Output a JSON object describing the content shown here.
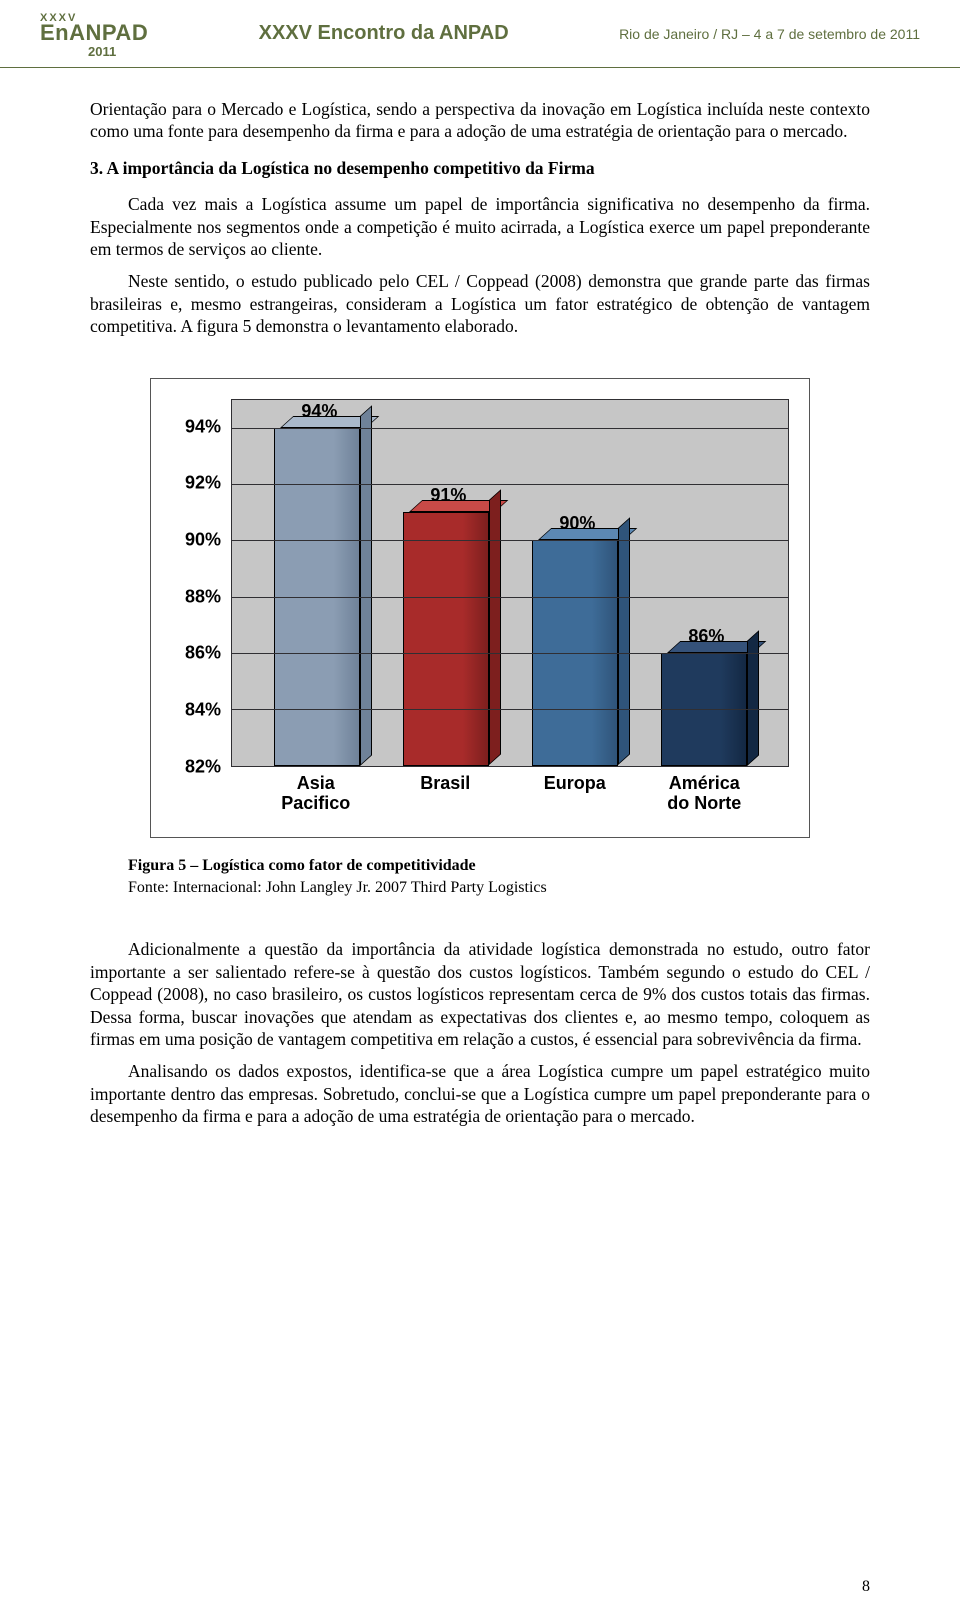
{
  "header": {
    "logo_top": "XXXV",
    "logo_main": "EnANPAD",
    "logo_year": "2011",
    "center": "XXXV Encontro da ANPAD",
    "right": "Rio de Janeiro / RJ – 4 a 7 de setembro de 2011"
  },
  "body": {
    "p1": "Orientação para o Mercado e Logística, sendo a perspectiva da inovação em Logística incluída neste contexto como uma fonte para desempenho da firma e para a adoção de uma estratégia de orientação para o mercado.",
    "h3": "3. A importância da Logística no desempenho competitivo da Firma",
    "p2": "Cada vez mais a Logística assume um papel de importância significativa no desempenho da firma. Especialmente nos segmentos onde a competição é muito acirrada, a Logística exerce um papel preponderante em termos de serviços ao cliente.",
    "p3": "Neste sentido, o estudo publicado pelo CEL / Coppead (2008) demonstra que grande parte das firmas brasileiras e, mesmo estrangeiras, consideram a Logística um fator estratégico de obtenção de vantagem competitiva. A figura 5 demonstra o levantamento elaborado.",
    "caption_bold": "Figura 5 – Logística como fator de competitividade",
    "source": "Fonte: Internacional: John Langley Jr. 2007 Third Party Logistics",
    "p4": "Adicionalmente a questão da importância da atividade logística demonstrada no estudo, outro fator importante a ser salientado refere-se à questão dos custos logísticos. Também segundo o estudo do CEL / Coppead (2008), no caso brasileiro, os custos logísticos representam cerca de 9% dos custos totais das firmas. Dessa forma, buscar inovações que atendam as expectativas dos clientes e, ao mesmo tempo, coloquem as firmas em uma posição de vantagem competitiva em relação a custos, é essencial para sobrevivência da firma.",
    "p5": "Analisando os dados expostos, identifica-se que a área Logística cumpre um papel estratégico muito importante dentro das empresas. Sobretudo, conclui-se que a Logística cumpre um papel preponderante para o desempenho da firma e para a adoção de uma estratégia de orientação para o mercado."
  },
  "chart": {
    "type": "bar-3d",
    "categories": [
      "Asia\nPacifico",
      "Brasil",
      "Europa",
      "América\ndo Norte"
    ],
    "bar_value_labels": [
      "94%",
      "91%",
      "90%",
      "86%"
    ],
    "values": [
      94,
      91,
      90,
      86
    ],
    "y_ticks": [
      82,
      84,
      86,
      88,
      90,
      92,
      94
    ],
    "y_tick_labels": [
      "82%",
      "84%",
      "86%",
      "88%",
      "90%",
      "92%",
      "94%"
    ],
    "ylim": [
      82,
      95
    ],
    "bar_colors": [
      "#8b9db3",
      "#a82b2a",
      "#3e6c98",
      "#1f3a5d"
    ],
    "bar_side_colors": [
      "#6f8299",
      "#7d1f1e",
      "#2f547a",
      "#132843"
    ],
    "bar_top_colors": [
      "#aab9cb",
      "#c84a47",
      "#5c88b3",
      "#35527a"
    ],
    "plot_bg": "#c6c6c6",
    "grid_color": "#302f33",
    "label_fontsize": 18,
    "label_fontweight": "bold",
    "label_fontfamily": "Arial"
  },
  "page_number": "8"
}
